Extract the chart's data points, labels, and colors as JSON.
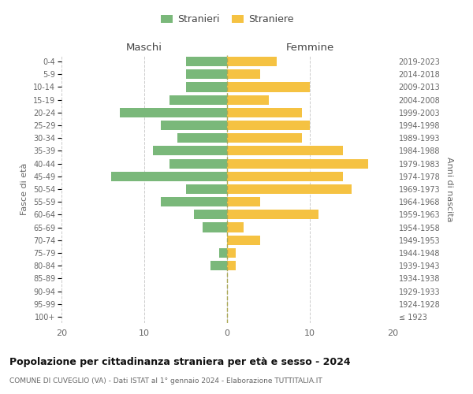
{
  "age_groups": [
    "100+",
    "95-99",
    "90-94",
    "85-89",
    "80-84",
    "75-79",
    "70-74",
    "65-69",
    "60-64",
    "55-59",
    "50-54",
    "45-49",
    "40-44",
    "35-39",
    "30-34",
    "25-29",
    "20-24",
    "15-19",
    "10-14",
    "5-9",
    "0-4"
  ],
  "birth_years": [
    "≤ 1923",
    "1924-1928",
    "1929-1933",
    "1934-1938",
    "1939-1943",
    "1944-1948",
    "1949-1953",
    "1954-1958",
    "1959-1963",
    "1964-1968",
    "1969-1973",
    "1974-1978",
    "1979-1983",
    "1984-1988",
    "1989-1993",
    "1994-1998",
    "1999-2003",
    "2004-2008",
    "2009-2013",
    "2014-2018",
    "2019-2023"
  ],
  "males": [
    0,
    0,
    0,
    0,
    2,
    1,
    0,
    3,
    4,
    8,
    5,
    14,
    7,
    9,
    6,
    8,
    13,
    7,
    5,
    5,
    5
  ],
  "females": [
    0,
    0,
    0,
    0,
    1,
    1,
    4,
    2,
    11,
    4,
    15,
    14,
    17,
    14,
    9,
    10,
    9,
    5,
    10,
    4,
    6
  ],
  "color_males": "#7ab87a",
  "color_females": "#f5c242",
  "title": "Popolazione per cittadinanza straniera per età e sesso - 2024",
  "subtitle": "COMUNE DI CUVEGLIO (VA) - Dati ISTAT al 1° gennaio 2024 - Elaborazione TUTTITALIA.IT",
  "xlabel_left": "Maschi",
  "xlabel_right": "Femmine",
  "ylabel_left": "Fasce di età",
  "ylabel_right": "Anni di nascita",
  "legend_males": "Stranieri",
  "legend_females": "Straniere",
  "xlim": 20,
  "background_color": "#ffffff",
  "grid_color": "#cccccc"
}
